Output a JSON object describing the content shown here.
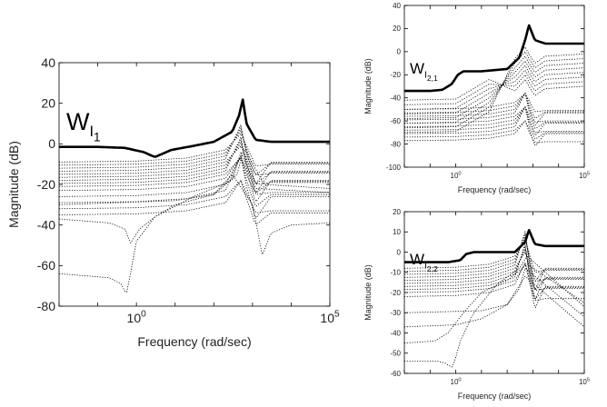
{
  "chart_data": [
    {
      "type": "line",
      "panel": "left",
      "title_label": {
        "base": "W",
        "sub": "I",
        "subsub": "1"
      },
      "xlabel": "Frequency  (rad/sec)",
      "ylabel": "Magnitude (dB)",
      "xscale": "log",
      "xlim": [
        0.01,
        100000
      ],
      "ylim": [
        -80,
        40
      ],
      "yticks": [
        "40",
        "20",
        "0",
        "-20",
        "-40",
        "-60",
        "-80"
      ],
      "xticks": [
        {
          "base": "10",
          "exp": "0",
          "value": 1
        },
        {
          "base": "10",
          "exp": "5",
          "value": 100000
        }
      ],
      "grid": false,
      "bold_series": {
        "name": "",
        "x": [
          0.01,
          0.1,
          0.5,
          1.5,
          3,
          8,
          30,
          100,
          300,
          450,
          560,
          700,
          1200,
          3000,
          100000
        ],
        "y": [
          -1.5,
          -1.5,
          -2,
          -4,
          -6.5,
          -3,
          -1,
          1,
          6,
          14,
          22,
          10,
          2,
          1,
          1
        ]
      },
      "dotted_levels": [
        -9,
        -10.5,
        -12,
        -13.5,
        -15,
        -16.5,
        -18,
        -19.5,
        -21,
        -23,
        -26,
        -29,
        -32,
        -35
      ],
      "dotted_special": [
        {
          "x": [
            0.01,
            0.2,
            0.5,
            0.7,
            1.2,
            3,
            10,
            100,
            400,
            600,
            2000,
            100000
          ],
          "y": [
            -37,
            -39,
            -42,
            -49,
            -42,
            -36,
            -30,
            -25,
            -15,
            -2,
            -20,
            -22
          ]
        },
        {
          "x": [
            0.01,
            0.2,
            0.4,
            0.55,
            0.7,
            1,
            3,
            30,
            300,
            500,
            1200,
            100000
          ],
          "y": [
            -64,
            -66,
            -69,
            -74,
            -64,
            -48,
            -36,
            -26,
            -18,
            -4,
            -22,
            -24
          ]
        },
        {
          "x": [
            0.01,
            10,
            100,
            300,
            1000,
            1800,
            3000,
            10000,
            100000
          ],
          "y": [
            -30,
            -28,
            -25,
            -15,
            -30,
            -55,
            -44,
            -40,
            -39
          ]
        }
      ]
    },
    {
      "type": "line",
      "panel": "top-right",
      "title_label": {
        "base": "W",
        "sub": "I",
        "subsub": "2,1"
      },
      "xlabel": "Frequency  (rad/sec)",
      "ylabel": "Magnitude (dB)",
      "xscale": "log",
      "xlim": [
        0.01,
        100000
      ],
      "ylim": [
        -100,
        40
      ],
      "yticks": [
        "40",
        "20",
        "0",
        "-20",
        "-40",
        "-60",
        "-80",
        "-100"
      ],
      "xticks": [
        {
          "base": "10",
          "exp": "0",
          "value": 1
        },
        {
          "base": "10",
          "exp": "5",
          "value": 100000
        }
      ],
      "grid": false,
      "bold_series": {
        "name": "",
        "x": [
          0.01,
          0.1,
          0.3,
          0.7,
          1.2,
          2,
          10,
          100,
          300,
          500,
          700,
          1200,
          3000,
          100000
        ],
        "y": [
          -34,
          -34,
          -33,
          -28,
          -20,
          -17,
          -17,
          -15,
          -5,
          10,
          23,
          10,
          7,
          7
        ]
      },
      "dotted_levels": [
        -50,
        -53,
        -56,
        -59,
        -62,
        -65,
        -68,
        -71,
        -74,
        -77
      ],
      "dotted_high_levels": [
        -2,
        -6,
        -10,
        -14,
        -18,
        -22,
        -26,
        -30
      ]
    },
    {
      "type": "line",
      "panel": "bottom-right",
      "title_label": {
        "base": "W",
        "sub": "I",
        "subsub": "2,2"
      },
      "xlabel": "Frequency  (rad/sec)",
      "ylabel": "Magnitude (dB)",
      "xscale": "log",
      "xlim": [
        0.01,
        100000
      ],
      "ylim": [
        -60,
        20
      ],
      "yticks": [
        "20",
        "10",
        "0",
        "-10",
        "-20",
        "-30",
        "-40",
        "-50",
        "-60"
      ],
      "xticks": [
        {
          "base": "10",
          "exp": "0",
          "value": 1
        },
        {
          "base": "10",
          "exp": "5",
          "value": 100000
        }
      ],
      "grid": false,
      "bold_series": {
        "name": "",
        "x": [
          0.01,
          0.5,
          1.5,
          2.5,
          5,
          30,
          200,
          500,
          700,
          1200,
          3000,
          100000
        ],
        "y": [
          -5,
          -5,
          -4,
          -1,
          0,
          0,
          0,
          5,
          11,
          4,
          3,
          3
        ]
      },
      "dotted_levels": [
        -8,
        -9.5,
        -11,
        -12.5,
        -14,
        -15.5,
        -17,
        -18.5,
        -20,
        -22
      ],
      "dotted_special": [
        {
          "x": [
            0.01,
            0.2,
            0.4,
            0.7,
            0.9,
            1.5,
            5,
            40,
            300,
            600,
            100000
          ],
          "y": [
            -54,
            -54,
            -55,
            -57,
            -54,
            -44,
            -30,
            -16,
            -8,
            -2,
            -27
          ]
        },
        {
          "x": [
            0.01,
            0.15,
            0.5,
            2,
            10,
            100,
            600,
            100000
          ],
          "y": [
            -45,
            -44,
            -40,
            -30,
            -20,
            -14,
            -6,
            -25
          ]
        },
        {
          "x": [
            0.01,
            1,
            10,
            100,
            500,
            100000
          ],
          "y": [
            -37,
            -36,
            -33,
            -26,
            -12,
            -37
          ]
        },
        {
          "x": [
            0.01,
            10,
            100,
            300,
            500,
            100000
          ],
          "y": [
            -30,
            -29,
            -26,
            -18,
            -8,
            -32
          ]
        }
      ]
    }
  ]
}
